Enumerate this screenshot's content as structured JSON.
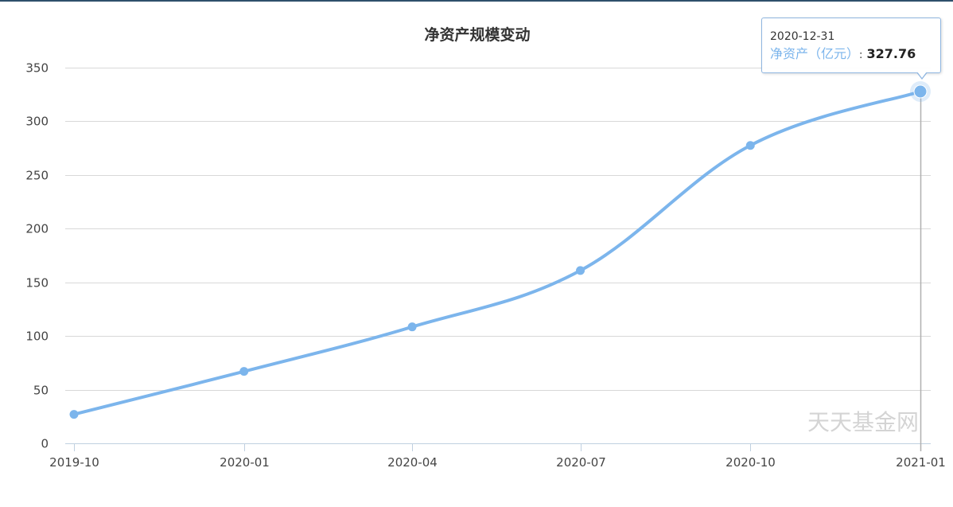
{
  "chart_data": {
    "type": "line",
    "title": "净资产规模变动",
    "xlabel": "",
    "ylabel": "",
    "x_tick_labels": [
      "2019-10",
      "2020-01",
      "2020-04",
      "2020-07",
      "2020-10",
      "2021-01"
    ],
    "y_tick_labels": [
      "0",
      "50",
      "100",
      "150",
      "200",
      "250",
      "300",
      "350"
    ],
    "y_ticks": [
      0,
      50,
      100,
      150,
      200,
      250,
      300,
      350
    ],
    "ylim": [
      0,
      350
    ],
    "xlim": [
      "2019-09-30",
      "2020-12-31"
    ],
    "grid": true,
    "legend": "none",
    "series": [
      {
        "color": "#7cb5ec",
        "points": [
          {
            "x": "2019-09-30",
            "y": 27
          },
          {
            "x": "2019-12-31",
            "y": 67
          },
          {
            "x": "2020-03-31",
            "y": 108.5
          },
          {
            "x": "2020-06-30",
            "y": 161
          },
          {
            "x": "2020-09-30",
            "y": 277.5
          },
          {
            "x": "2020-12-31",
            "y": 327.76
          }
        ]
      }
    ],
    "tooltip": {
      "date": "2020-12-31",
      "series_label": "净资产（亿元）",
      "separator": ":",
      "value": "327.76"
    },
    "watermark": "天天基金网"
  }
}
